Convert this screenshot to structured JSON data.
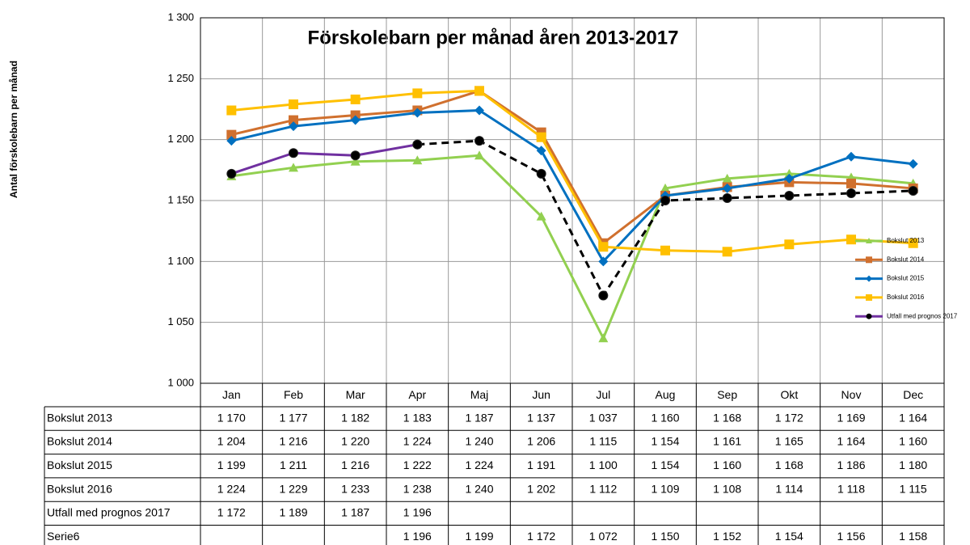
{
  "chart_data": {
    "type": "line",
    "title": "Förskolebarn per månad åren 2013-2017",
    "y_label": "Antal förskolebarn per månad",
    "categories": [
      "Jan",
      "Feb",
      "Mar",
      "Apr",
      "Maj",
      "Jun",
      "Jul",
      "Aug",
      "Sep",
      "Okt",
      "Nov",
      "Dec"
    ],
    "ylim": [
      1000,
      1300
    ],
    "yticks": [
      {
        "value": 1000,
        "label": "1 000"
      },
      {
        "value": 1050,
        "label": "1 050"
      },
      {
        "value": 1100,
        "label": "1 100"
      },
      {
        "value": 1150,
        "label": "1 150"
      },
      {
        "value": 1200,
        "label": "1 200"
      },
      {
        "value": 1250,
        "label": "1 250"
      },
      {
        "value": 1300,
        "label": "1 300"
      }
    ],
    "grid": true,
    "legend": "right",
    "series": [
      {
        "name": "Bokslut 2013",
        "color": "#92d050",
        "marker": "triangle",
        "values": [
          1170,
          1177,
          1182,
          1183,
          1187,
          1137,
          1037,
          1160,
          1168,
          1172,
          1169,
          1164
        ],
        "value_labels": [
          "1 170",
          "1 177",
          "1 182",
          "1 183",
          "1 187",
          "1 137",
          "1 037",
          "1 160",
          "1 168",
          "1 172",
          "1 169",
          "1 164"
        ]
      },
      {
        "name": "Bokslut 2014",
        "color": "#d0702e",
        "marker": "square",
        "values": [
          1204,
          1216,
          1220,
          1224,
          1240,
          1206,
          1115,
          1154,
          1161,
          1165,
          1164,
          1160
        ],
        "value_labels": [
          "1 204",
          "1 216",
          "1 220",
          "1 224",
          "1 240",
          "1 206",
          "1 115",
          "1 154",
          "1 161",
          "1 165",
          "1 164",
          "1 160"
        ]
      },
      {
        "name": "Bokslut 2015",
        "color": "#0070c0",
        "marker": "diamond",
        "values": [
          1199,
          1211,
          1216,
          1222,
          1224,
          1191,
          1100,
          1154,
          1160,
          1168,
          1186,
          1180
        ],
        "value_labels": [
          "1 199",
          "1 211",
          "1 216",
          "1 222",
          "1 224",
          "1 191",
          "1 100",
          "1 154",
          "1 160",
          "1 168",
          "1 186",
          "1 180"
        ]
      },
      {
        "name": "Bokslut 2016",
        "color": "#ffc000",
        "marker": "square",
        "values": [
          1224,
          1229,
          1233,
          1238,
          1240,
          1202,
          1112,
          1109,
          1108,
          1114,
          1118,
          1115
        ],
        "value_labels": [
          "1 224",
          "1 229",
          "1 233",
          "1 238",
          "1 240",
          "1 202",
          "1 112",
          "1 109",
          "1 108",
          "1 114",
          "1 118",
          "1 115"
        ]
      },
      {
        "name": "Utfall med prognos 2017",
        "color": "#7030a0",
        "marker": "circle",
        "marker_color": "#000000",
        "values": [
          1172,
          1189,
          1187,
          1196,
          null,
          null,
          null,
          null,
          null,
          null,
          null,
          null
        ],
        "value_labels": [
          "1 172",
          "1 189",
          "1 187",
          "1 196",
          null,
          null,
          null,
          null,
          null,
          null,
          null,
          null
        ]
      },
      {
        "name": "Serie6",
        "color": "#000000",
        "marker": "circle",
        "marker_color": "#000000",
        "dashed": true,
        "in_legend": false,
        "values": [
          null,
          null,
          null,
          1196,
          1199,
          1172,
          1072,
          1150,
          1152,
          1154,
          1156,
          1158
        ],
        "value_labels": [
          null,
          null,
          null,
          "1 196",
          "1 199",
          "1 172",
          "1 072",
          "1 150",
          "1 152",
          "1 154",
          "1 156",
          "1 158"
        ]
      }
    ]
  }
}
